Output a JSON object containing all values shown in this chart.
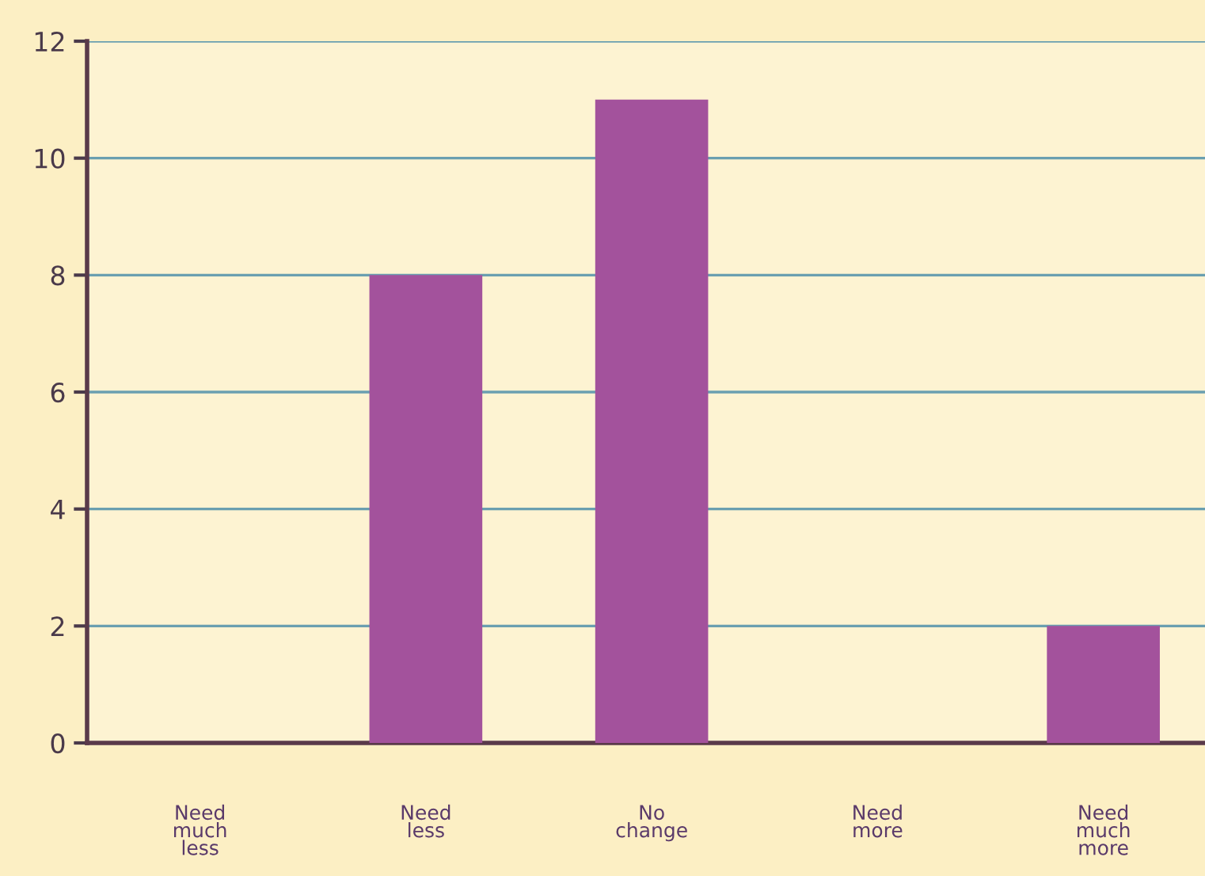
{
  "chart_data": {
    "type": "bar",
    "categories": [
      "Need\nmuch\nless",
      "Need\nless",
      "No\nchange",
      "Need\nmore",
      "Need\nmuch\nmore"
    ],
    "values": [
      0,
      8,
      11,
      0,
      2
    ],
    "color": "#a3529c",
    "ylim": [
      0,
      12
    ],
    "yticks": [
      0,
      2,
      4,
      6,
      8,
      10,
      12
    ],
    "grid": "y"
  }
}
